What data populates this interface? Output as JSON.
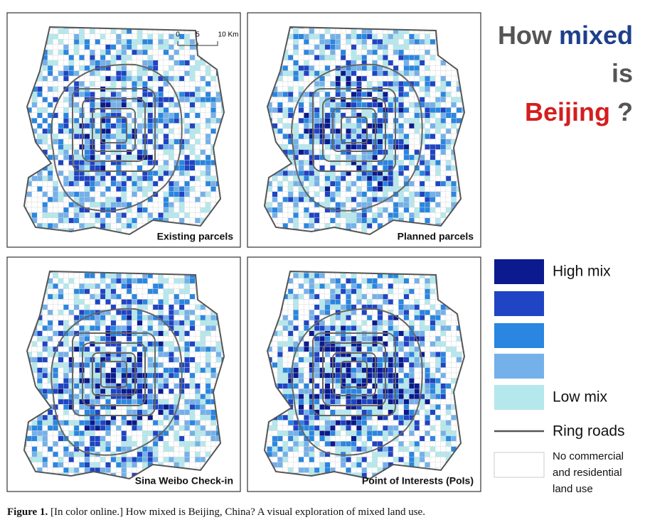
{
  "panels": [
    {
      "label": "Existing parcels"
    },
    {
      "label": "Planned parcels"
    },
    {
      "label": "Sina Weibo Check-in"
    },
    {
      "label": "Point of Interests (PoIs)"
    }
  ],
  "scale_bar": {
    "ticks": [
      "0",
      "5",
      "10 Km"
    ]
  },
  "title": {
    "line1": "How",
    "line1_highlight": "mixed",
    "line2": "is",
    "line3_highlight": "Beijing",
    "line3_end": "?"
  },
  "legend": {
    "levels": [
      {
        "label": "High mix",
        "color": "#0b1a8e"
      },
      {
        "color": "#1f44c4"
      },
      {
        "color": "#2a86e0"
      },
      {
        "color": "#74b1ea"
      },
      {
        "label": "Low mix",
        "color": "#b4e8ec"
      }
    ],
    "ring_roads": "Ring roads",
    "none": [
      "No commercial",
      "and residential",
      "land use"
    ]
  },
  "caption": {
    "label": "Figure 1.",
    "text": "[In color online.] How mixed is Beijing, China? A visual exploration of mixed land use."
  }
}
